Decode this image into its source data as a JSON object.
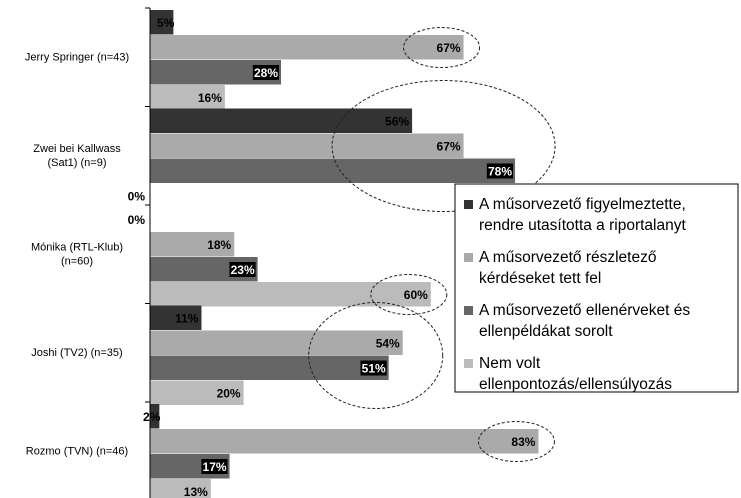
{
  "chart_data": {
    "type": "bar",
    "orientation": "horizontal",
    "categories": [
      [
        "Jerry Springer (n=43)"
      ],
      [
        "Zwei bei Kallwass",
        "(Sat1) (n=9)"
      ],
      [
        "Mónika (RTL-Klub)",
        "(n=60)"
      ],
      [
        "Joshi (TV2) (n=35)"
      ],
      [
        "Rozmo (TVN) (n=46)"
      ]
    ],
    "series": [
      {
        "name": "A műsorvezető figyelmeztette, rendre utasította a riportalanyt",
        "legend_lines": [
          "A műsorvezető figyelmeztette,",
          "rendre utasította a riportalanyt"
        ],
        "color": "#333333",
        "values": [
          5,
          56,
          0,
          11,
          2
        ]
      },
      {
        "name": "A műsorvezető részletező kérdéseket tett fel",
        "legend_lines": [
          "A műsorvezető részletező",
          "kérdéseket tett fel"
        ],
        "color": "#aaaaaa",
        "values": [
          67,
          67,
          18,
          54,
          83
        ]
      },
      {
        "name": "A műsorvezető ellenérveket és ellenpéldákat sorolt",
        "legend_lines": [
          "A műsorvezető ellenérveket és",
          "ellenpéldákat sorolt"
        ],
        "color": "#666666",
        "values": [
          28,
          78,
          23,
          51,
          17
        ]
      },
      {
        "name": "Nem volt ellenpontozás/ellensúlyozás",
        "legend_lines": [
          "Nem volt",
          "ellenpontozás/ellensúlyozás"
        ],
        "color": "#bbbbbb",
        "values": [
          16,
          0,
          60,
          20,
          13
        ]
      }
    ],
    "value_suffix": "%",
    "xlim": [
      0,
      100
    ],
    "highlighted": [
      {
        "category": 0,
        "series": 1
      },
      {
        "category": 1,
        "series": [
          0,
          1,
          2
        ]
      },
      {
        "category": 2,
        "series": 3
      },
      {
        "category": 3,
        "series": [
          1,
          2
        ]
      },
      {
        "category": 4,
        "series": 1
      }
    ],
    "legend_position": "right",
    "grid": false
  }
}
